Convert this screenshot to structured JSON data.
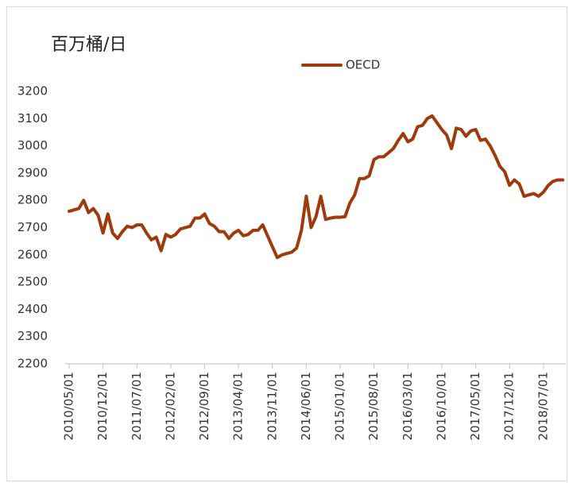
{
  "chart_data": {
    "type": "line",
    "title": "百万桶/日",
    "categories": [
      "2010/05/01",
      null,
      null,
      null,
      null,
      null,
      null,
      "2010/12/01",
      null,
      null,
      null,
      null,
      null,
      null,
      "2011/07/01",
      null,
      null,
      null,
      null,
      null,
      null,
      "2012/02/01",
      null,
      null,
      null,
      null,
      null,
      null,
      "2012/09/01",
      null,
      null,
      null,
      null,
      null,
      null,
      "2013/04/01",
      null,
      null,
      null,
      null,
      null,
      null,
      "2013/11/01",
      null,
      null,
      null,
      null,
      null,
      null,
      "2014/06/01",
      null,
      null,
      null,
      null,
      null,
      null,
      "2015/01/01",
      null,
      null,
      null,
      null,
      null,
      null,
      "2015/08/01",
      null,
      null,
      null,
      null,
      null,
      null,
      "2016/03/01",
      null,
      null,
      null,
      null,
      null,
      null,
      "2016/10/01",
      null,
      null,
      null,
      null,
      null,
      null,
      "2017/05/01",
      null,
      null,
      null,
      null,
      null,
      null,
      "2017/12/01",
      null,
      null,
      null,
      null,
      null,
      null,
      "2018/07/01",
      null,
      null,
      null,
      null
    ],
    "series": [
      {
        "name": "OECD",
        "color": "#9e3a0c",
        "values": [
          2760,
          2765,
          2770,
          2800,
          2755,
          2770,
          2745,
          2680,
          2750,
          2680,
          2660,
          2685,
          2705,
          2700,
          2710,
          2710,
          2680,
          2655,
          2665,
          2615,
          2675,
          2665,
          2675,
          2695,
          2700,
          2705,
          2735,
          2735,
          2750,
          2715,
          2705,
          2685,
          2685,
          2660,
          2680,
          2690,
          2670,
          2675,
          2690,
          2690,
          2710,
          2670,
          2630,
          2590,
          2600,
          2605,
          2610,
          2625,
          2690,
          2815,
          2700,
          2740,
          2815,
          2730,
          2735,
          2738,
          2738,
          2740,
          2790,
          2820,
          2880,
          2880,
          2890,
          2950,
          2960,
          2960,
          2975,
          2990,
          3020,
          3045,
          3015,
          3025,
          3070,
          3075,
          3100,
          3110,
          3085,
          3060,
          3040,
          2990,
          3065,
          3060,
          3035,
          3055,
          3060,
          3020,
          3025,
          3000,
          2965,
          2925,
          2905,
          2855,
          2875,
          2860,
          2815,
          2820,
          2825,
          2815,
          2830,
          2855,
          2870,
          2875,
          2875
        ]
      }
    ],
    "ylim": [
      2200,
      3200
    ],
    "yticks": [
      2200,
      2300,
      2400,
      2500,
      2600,
      2700,
      2800,
      2900,
      3000,
      3100,
      3200
    ],
    "legend": "top"
  }
}
